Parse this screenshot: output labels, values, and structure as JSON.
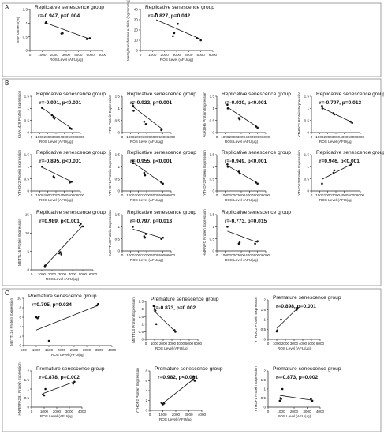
{
  "panels": [
    {
      "letter": "A"
    },
    {
      "letter": "B"
    },
    {
      "letter": "C"
    }
  ],
  "chart_data": [
    {
      "type": "scatter",
      "panel": "A",
      "title": "Replicative senescence group",
      "stat_r": "r=-0.947",
      "stat_p": "p=0.004",
      "xlabel": "ROS Level (AFU/μg)",
      "ylabel": "m6A content(%)",
      "xlim": [
        0,
        6000
      ],
      "ylim": [
        0,
        1.5
      ],
      "xticks": [
        0,
        1000,
        2000,
        3000,
        4000,
        5000,
        6000
      ],
      "yticks": [
        0.0,
        0.5,
        1.0,
        1.5
      ],
      "points": [
        [
          1300,
          1.0
        ],
        [
          1350,
          1.05
        ],
        [
          2600,
          0.62
        ],
        [
          2700,
          0.63
        ],
        [
          4700,
          0.42
        ],
        [
          4950,
          0.45
        ]
      ],
      "fit": [
        [
          1300,
          1.01
        ],
        [
          5000,
          0.41
        ]
      ]
    },
    {
      "type": "scatter",
      "panel": "A",
      "title": "Replicative senescence group",
      "stat_r": "r=-0.827",
      "stat_p": "p=0.042",
      "xlabel": "ROS Level (AFU/μg)",
      "ylabel": "Methyltransferase Activity (ng/min/mg)",
      "xlim": [
        0,
        6000
      ],
      "ylim": [
        0,
        40
      ],
      "xticks": [
        0,
        1000,
        2000,
        3000,
        4000,
        5000,
        6000
      ],
      "yticks": [
        0,
        10,
        20,
        30,
        40
      ],
      "points": [
        [
          1300,
          36
        ],
        [
          2700,
          14
        ],
        [
          2800,
          17
        ],
        [
          3100,
          26
        ],
        [
          4700,
          12
        ],
        [
          5000,
          10
        ]
      ],
      "fit": [
        [
          1300,
          30
        ],
        [
          5000,
          11
        ]
      ]
    },
    {
      "type": "scatter",
      "panel": "B",
      "title": "Replicative senescence group",
      "stat_r": "r=-0.991",
      "stat_p": "p<0.001",
      "xlabel": "ROS Level (AFU/μg)",
      "ylabel": "KIAA1429 Protein Expression",
      "xlim": [
        0,
        6000
      ],
      "ylim": [
        0,
        1.5
      ],
      "xticks": [
        0,
        1000,
        2000,
        3000,
        4000,
        5000,
        6000
      ],
      "yticks": [
        0.0,
        0.5,
        1.0,
        1.5
      ],
      "points": [
        [
          1300,
          1.02
        ],
        [
          2500,
          0.72
        ],
        [
          2700,
          0.65
        ],
        [
          2800,
          0.58
        ],
        [
          4700,
          0.18
        ],
        [
          4900,
          0.15
        ]
      ],
      "fit": [
        [
          1300,
          1.02
        ],
        [
          5000,
          0.15
        ]
      ]
    },
    {
      "type": "scatter",
      "panel": "B",
      "title": "Replicative senescence group",
      "stat_r": "r=-0.922",
      "stat_p": "p=0.001",
      "xlabel": "ROS Level (AFU/μg)",
      "ylabel": "FTO Protein Expression",
      "xlim": [
        0,
        6000
      ],
      "ylim": [
        0,
        1.5
      ],
      "xticks": [
        0,
        1000,
        2000,
        3000,
        4000,
        5000,
        6000
      ],
      "yticks": [
        0.0,
        0.5,
        1.0,
        1.5
      ],
      "points": [
        [
          1300,
          1.2
        ],
        [
          1350,
          1.1
        ],
        [
          1400,
          0.9
        ],
        [
          2700,
          0.45
        ],
        [
          2900,
          0.35
        ],
        [
          4800,
          0.1
        ]
      ],
      "fit": [
        [
          1300,
          1.08
        ],
        [
          5000,
          0.12
        ]
      ]
    },
    {
      "type": "scatter",
      "panel": "B",
      "title": "Replicative senescence group",
      "stat_r": "r=-0.930",
      "stat_p": "p<0.001",
      "xlabel": "ROS Level (AFU/μg)",
      "ylabel": "ALKBH5 Protein Expression",
      "xlim": [
        0,
        6000
      ],
      "ylim": [
        0,
        1.5
      ],
      "xticks": [
        0,
        1000,
        2000,
        3000,
        4000,
        5000,
        6000
      ],
      "yticks": [
        0.0,
        0.5,
        1.0,
        1.5
      ],
      "points": [
        [
          1300,
          1.15
        ],
        [
          1350,
          1.0
        ],
        [
          2700,
          0.6
        ],
        [
          2800,
          0.55
        ],
        [
          4800,
          0.25
        ],
        [
          5000,
          0.2
        ]
      ],
      "fit": [
        [
          1300,
          1.05
        ],
        [
          5000,
          0.22
        ]
      ]
    },
    {
      "type": "scatter",
      "panel": "B",
      "title": "Replicative senescence group",
      "stat_r": "r=-0.797",
      "stat_p": "p=0.013",
      "xlabel": "ROS Level (AFU/μg)",
      "ylabel": "YTHDC1 Protein Expression",
      "xlim": [
        0,
        6000
      ],
      "ylim": [
        0,
        1.5
      ],
      "xticks": [
        0,
        1000,
        2000,
        3000,
        4000,
        5000,
        6000
      ],
      "yticks": [
        0.0,
        0.5,
        1.0,
        1.5
      ],
      "points": [
        [
          1300,
          1.1
        ],
        [
          1350,
          1.0
        ],
        [
          2700,
          0.8
        ],
        [
          2800,
          0.75
        ],
        [
          4800,
          0.45
        ],
        [
          5000,
          0.4
        ]
      ],
      "fit": [
        [
          1300,
          1.02
        ],
        [
          5000,
          0.42
        ]
      ]
    },
    {
      "type": "scatter",
      "panel": "B",
      "title": "Replicative senescence group",
      "stat_r": "r=-0.895",
      "stat_p": "p<0.001",
      "xlabel": "ROS Level (AFU/μg)",
      "ylabel": "YTHDC2 Protein Expression",
      "xlim": [
        0,
        6000
      ],
      "ylim": [
        0,
        1.5
      ],
      "xticks": [
        0,
        1000,
        2000,
        3000,
        4000,
        5000,
        6000
      ],
      "yticks": [
        0.0,
        0.5,
        1.0,
        1.5
      ],
      "points": [
        [
          1300,
          1.0
        ],
        [
          2700,
          0.6
        ],
        [
          2800,
          0.55
        ],
        [
          4700,
          0.35
        ],
        [
          4900,
          0.38
        ]
      ],
      "fit": [
        [
          1300,
          0.98
        ],
        [
          5000,
          0.37
        ]
      ]
    },
    {
      "type": "scatter",
      "panel": "B",
      "title": "Replicative senescence group",
      "stat_r": "r=-0.955",
      "stat_p": "p<0.001",
      "xlabel": "ROS Level (AFU/μg)",
      "ylabel": "YTHDF1 Protein Expression",
      "xlim": [
        0,
        6000
      ],
      "ylim": [
        0,
        1.5
      ],
      "xticks": [
        0,
        1000,
        2000,
        3000,
        4000,
        5000,
        6000
      ],
      "yticks": [
        0.0,
        0.5,
        1.0,
        1.5
      ],
      "points": [
        [
          1300,
          1.25
        ],
        [
          1350,
          1.15
        ],
        [
          2700,
          0.75
        ],
        [
          2800,
          0.65
        ],
        [
          4800,
          0.35
        ],
        [
          5000,
          0.3
        ]
      ],
      "fit": [
        [
          1300,
          1.18
        ],
        [
          5000,
          0.3
        ]
      ]
    },
    {
      "type": "scatter",
      "panel": "B",
      "title": "Replicative senescence group",
      "stat_r": "r=-0.949",
      "stat_p": "p<0.001",
      "xlabel": "ROS Level (AFU/μg)",
      "ylabel": "YTHDF2 Protein Expression",
      "xlim": [
        0,
        6000
      ],
      "ylim": [
        0,
        1.5
      ],
      "xticks": [
        0,
        1000,
        2000,
        3000,
        4000,
        5000,
        6000
      ],
      "yticks": [
        0.0,
        0.5,
        1.0,
        1.5
      ],
      "points": [
        [
          1300,
          1.1
        ],
        [
          1350,
          1.0
        ],
        [
          2700,
          0.8
        ],
        [
          2800,
          0.72
        ],
        [
          4800,
          0.35
        ],
        [
          5000,
          0.3
        ]
      ],
      "fit": [
        [
          1300,
          1.05
        ],
        [
          5000,
          0.32
        ]
      ]
    },
    {
      "type": "scatter",
      "panel": "B",
      "title": "Replicative senescence group",
      "stat_r": "r=0.946",
      "stat_p": "p<0.001",
      "xlabel": "ROS Level (AFU/μg)",
      "ylabel": "YTHDF3 Protein Expression",
      "xlim": [
        0,
        6000
      ],
      "ylim": [
        0,
        1.5
      ],
      "xticks": [
        0,
        1000,
        2000,
        3000,
        4000,
        5000,
        6000
      ],
      "yticks": [
        0.0,
        0.5,
        1.0,
        1.5
      ],
      "points": [
        [
          1300,
          0.3
        ],
        [
          2700,
          0.75
        ],
        [
          2800,
          0.85
        ],
        [
          4700,
          1.05
        ],
        [
          4900,
          1.1
        ]
      ],
      "fit": [
        [
          1300,
          0.48
        ],
        [
          5000,
          1.12
        ]
      ]
    },
    {
      "type": "scatter",
      "panel": "B",
      "title": "Replicative senescence group",
      "stat_r": "r=0.989",
      "stat_p": "p<0.001",
      "xlabel": "ROS Level (AFU/μg)",
      "ylabel": "METTL16 Protein Expression",
      "xlim": [
        0,
        6000
      ],
      "ylim": [
        0,
        15
      ],
      "xticks": [
        0,
        1000,
        2000,
        3000,
        4000,
        5000,
        6000
      ],
      "yticks": [
        0,
        5,
        10,
        15
      ],
      "points": [
        [
          1300,
          1.0
        ],
        [
          1350,
          1.2
        ],
        [
          2700,
          4.5
        ],
        [
          2800,
          4.8
        ],
        [
          2900,
          4.2
        ],
        [
          4700,
          12.0
        ],
        [
          4800,
          12.5
        ],
        [
          5000,
          11.8
        ]
      ],
      "fit": [
        [
          1300,
          1.0
        ],
        [
          5000,
          12.0
        ]
      ]
    },
    {
      "type": "scatter",
      "panel": "B",
      "title": "Replicative senescence group",
      "stat_r": "r=-0.797",
      "stat_p": "p=0.013",
      "xlabel": "ROS Level (AFU/μg)",
      "ylabel": "METTL3 Protein Expression",
      "xlim": [
        0,
        6000
      ],
      "ylim": [
        0,
        1.5
      ],
      "xticks": [
        0,
        1000,
        2000,
        3000,
        4000,
        5000,
        6000
      ],
      "yticks": [
        0.0,
        0.5,
        1.0,
        1.5
      ],
      "points": [
        [
          1300,
          1.0
        ],
        [
          2700,
          0.6
        ],
        [
          2800,
          0.55
        ],
        [
          2900,
          0.7
        ],
        [
          4800,
          0.5
        ],
        [
          5000,
          0.55
        ]
      ],
      "fit": [
        [
          1300,
          0.9
        ],
        [
          5000,
          0.52
        ]
      ]
    },
    {
      "type": "scatter",
      "panel": "B",
      "title": "Replicative senescence group",
      "stat_r": "r=-0.773",
      "stat_p": "p=0.015",
      "xlabel": "ROS Level (AFU/μg)",
      "ylabel": "HNRNPC Protein Expression",
      "xlim": [
        0,
        6000
      ],
      "ylim": [
        0,
        1.5
      ],
      "xticks": [
        0,
        1000,
        2000,
        3000,
        4000,
        5000,
        6000
      ],
      "yticks": [
        0.0,
        0.5,
        1.0,
        1.5
      ],
      "points": [
        [
          1300,
          1.0
        ],
        [
          2700,
          0.3
        ],
        [
          2800,
          0.35
        ],
        [
          4700,
          0.3
        ],
        [
          5000,
          0.4
        ]
      ],
      "fit": [
        [
          1300,
          0.82
        ],
        [
          5000,
          0.35
        ]
      ]
    },
    {
      "type": "scatter",
      "panel": "C",
      "title": "Premature senescence group",
      "stat_r": "r=0.705",
      "stat_p": "p=0.034",
      "xlabel": "ROS Level (AFU/μg)",
      "ylabel": "METTL16 Protein Expression",
      "xlim": [
        500,
        4000
      ],
      "ylim": [
        0,
        10
      ],
      "xticks": [
        500,
        1000,
        1500,
        2000,
        2500,
        3000,
        3500,
        4000
      ],
      "yticks": [
        0,
        2,
        4,
        6,
        8,
        10
      ],
      "points": [
        [
          1000,
          6.0
        ],
        [
          1100,
          6.1
        ],
        [
          1050,
          5.8
        ],
        [
          1500,
          1.0
        ],
        [
          3400,
          8.5
        ],
        [
          3450,
          8.8
        ]
      ],
      "fit": [
        [
          1000,
          3.3
        ],
        [
          3450,
          8.5
        ]
      ]
    },
    {
      "type": "scatter",
      "panel": "C",
      "title": "Premature senescence group",
      "stat_r": "r=-0.873",
      "stat_p": "p=0.002",
      "xlabel": "ROS Level (AFU/μg)",
      "ylabel": "METTL3 Protein Expression",
      "xlim": [
        0,
        6000
      ],
      "ylim": [
        0,
        2.5
      ],
      "xticks": [
        0,
        1000,
        2000,
        3000,
        4000,
        5000,
        6000
      ],
      "yticks": [
        0.0,
        0.5,
        1.0,
        1.5,
        2.0,
        2.5
      ],
      "points": [
        [
          900,
          2.2
        ],
        [
          1000,
          2.0
        ],
        [
          1100,
          1.9
        ],
        [
          1200,
          1.0
        ],
        [
          3300,
          0.6
        ],
        [
          3400,
          0.5
        ]
      ],
      "fit": [
        [
          900,
          1.9
        ],
        [
          3400,
          0.5
        ]
      ]
    },
    {
      "type": "scatter",
      "panel": "C",
      "title": "Premature senescence group",
      "stat_r": "r=0.898",
      "stat_p": "p=0.001",
      "xlabel": "ROS Level (AFU/μg)",
      "ylabel": "YTHDC2 Protein Expression",
      "xlim": [
        0,
        6000
      ],
      "ylim": [
        0,
        2.0
      ],
      "xticks": [
        0,
        1000,
        2000,
        3000,
        4000,
        5000,
        6000
      ],
      "yticks": [
        0.0,
        0.5,
        1.0,
        1.5,
        2.0
      ],
      "points": [
        [
          1000,
          0.4
        ],
        [
          1050,
          0.45
        ],
        [
          1500,
          1.0
        ],
        [
          3300,
          1.5
        ],
        [
          3400,
          1.6
        ]
      ],
      "fit": [
        [
          1000,
          0.55
        ],
        [
          3400,
          1.58
        ]
      ]
    },
    {
      "type": "scatter",
      "panel": "C",
      "title": "Premature senescence group",
      "stat_r": "r=0.878",
      "stat_p": "p=0.002",
      "xlabel": "ROS Level (AFU/μg)",
      "ylabel": "HNRNPA2B1 Protein Expression",
      "xlim": [
        0,
        4000
      ],
      "ylim": [
        0,
        2.0
      ],
      "xticks": [
        0,
        1000,
        2000,
        3000,
        4000
      ],
      "yticks": [
        0.0,
        0.5,
        1.0,
        1.5,
        2.0
      ],
      "points": [
        [
          900,
          0.7
        ],
        [
          1000,
          0.65
        ],
        [
          1100,
          1.0
        ],
        [
          3300,
          1.3
        ],
        [
          3400,
          1.4
        ]
      ],
      "fit": [
        [
          900,
          0.75
        ],
        [
          3400,
          1.4
        ]
      ]
    },
    {
      "type": "scatter",
      "panel": "C",
      "title": "Premature senescence group",
      "stat_r": "r=0.982",
      "stat_p": "p<0.001",
      "xlabel": "ROS Level (AFU/μg)",
      "ylabel": "YTHDF2 Protein Expression",
      "xlim": [
        0,
        4000
      ],
      "ylim": [
        0,
        8
      ],
      "xticks": [
        0,
        1000,
        2000,
        3000,
        4000
      ],
      "yticks": [
        0,
        2,
        4,
        6,
        8
      ],
      "points": [
        [
          900,
          1.5
        ],
        [
          1000,
          1.2
        ],
        [
          1100,
          1.4
        ],
        [
          3300,
          6.2
        ],
        [
          3400,
          6.8
        ],
        [
          3450,
          6.0
        ]
      ],
      "fit": [
        [
          900,
          1.2
        ],
        [
          3450,
          6.5
        ]
      ]
    },
    {
      "type": "scatter",
      "panel": "C",
      "title": "Premature senescence group",
      "stat_r": "r=-0.873",
      "stat_p": "p=0.002",
      "xlabel": "ROS Level (AFU/μg)",
      "ylabel": "YTHDF1 Protein Expression",
      "xlim": [
        0,
        4000
      ],
      "ylim": [
        0,
        2.0
      ],
      "xticks": [
        0,
        1000,
        2000,
        3000,
        4000
      ],
      "yticks": [
        0.0,
        0.5,
        1.0,
        1.5,
        2.0
      ],
      "points": [
        [
          900,
          0.35
        ],
        [
          950,
          0.5
        ],
        [
          1000,
          0.45
        ],
        [
          1100,
          1.0
        ],
        [
          3300,
          0.45
        ],
        [
          3400,
          0.35
        ]
      ],
      "fit": [
        [
          900,
          0.65
        ],
        [
          3400,
          0.38
        ]
      ]
    }
  ]
}
